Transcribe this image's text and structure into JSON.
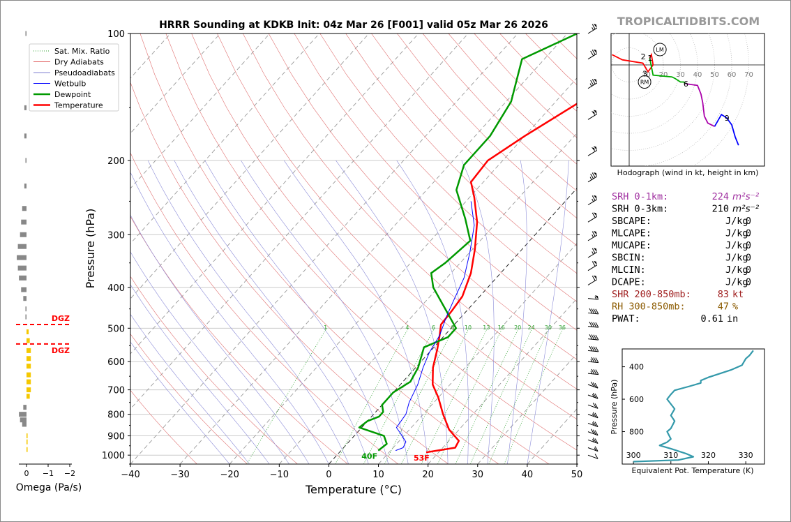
{
  "chart_data": {
    "type": "line",
    "title": "HRRR Sounding at KDKB Init: 04z Mar 26 [F001] valid 05z Mar 26 2026",
    "watermark": "TROPICALTIDBITS.COM",
    "xlabel": "Temperature (°C)",
    "ylabel": "Pressure (hPa)",
    "xlim": [
      -40,
      50
    ],
    "ylim": [
      1050,
      100
    ],
    "y_scale": "log",
    "x_ticks": [
      "−40",
      "−30",
      "−20",
      "−10",
      "0",
      "10",
      "20",
      "30",
      "40",
      "50"
    ],
    "y_ticks": [
      "100",
      "200",
      "300",
      "400",
      "500",
      "600",
      "700",
      "800",
      "900",
      "1000"
    ],
    "y_tick_values": [
      100,
      200,
      300,
      400,
      500,
      600,
      700,
      800,
      900,
      1000
    ],
    "legend_position": "top-left",
    "legend": [
      {
        "label": "Sat. Mix. Ratio",
        "color": "#2ca02c",
        "style": "dotted"
      },
      {
        "label": "Dry Adiabats",
        "color": "#e06060",
        "style": "solid"
      },
      {
        "label": "Pseudoadiabats",
        "color": "#7f7fd0",
        "style": "solid"
      },
      {
        "label": "Wetbulb",
        "color": "#0000ff",
        "style": "solid"
      },
      {
        "label": "Dewpoint",
        "color": "#009900",
        "style": "thick"
      },
      {
        "label": "Temperature",
        "color": "#ff0000",
        "style": "thick"
      }
    ],
    "mixing_ratio_labels": [
      "1",
      "4",
      "6",
      "8",
      "10",
      "13",
      "16",
      "20",
      "24",
      "30",
      "36"
    ],
    "mixing_ratio_values": [
      1,
      4,
      6,
      8,
      10,
      13,
      16,
      20,
      24,
      30,
      36
    ],
    "surface_labels": {
      "temperature": "53F",
      "dewpoint": "40F"
    },
    "series": [
      {
        "name": "Temperature",
        "color": "#ff0000",
        "points": [
          [
            17.5,
            985
          ],
          [
            22.5,
            960
          ],
          [
            22.0,
            925
          ],
          [
            18.0,
            870
          ],
          [
            14.0,
            800
          ],
          [
            10.0,
            730
          ],
          [
            6.5,
            680
          ],
          [
            3.5,
            620
          ],
          [
            1.0,
            560
          ],
          [
            -1.0,
            520
          ],
          [
            -2.7,
            490
          ],
          [
            -3.0,
            455
          ],
          [
            -3.5,
            420
          ],
          [
            -6.0,
            370
          ],
          [
            -9.5,
            325
          ],
          [
            -14.0,
            280
          ],
          [
            -19.0,
            245
          ],
          [
            -22.5,
            225
          ],
          [
            -23.0,
            200
          ],
          [
            -20.0,
            175
          ],
          [
            -15.0,
            145
          ],
          [
            -13.0,
            125
          ],
          [
            -11.0,
            110
          ],
          [
            -9.5,
            100
          ]
        ]
      },
      {
        "name": "Dewpoint",
        "color": "#009900",
        "points": [
          [
            7.5,
            975
          ],
          [
            8.0,
            940
          ],
          [
            6.0,
            900
          ],
          [
            -0.5,
            860
          ],
          [
            0.0,
            830
          ],
          [
            1.5,
            810
          ],
          [
            1.5,
            790
          ],
          [
            0.0,
            760
          ],
          [
            0.0,
            710
          ],
          [
            1.5,
            670
          ],
          [
            0.5,
            620
          ],
          [
            -1.0,
            580
          ],
          [
            -2.0,
            555
          ],
          [
            1.0,
            525
          ],
          [
            1.0,
            500
          ],
          [
            -3.5,
            460
          ],
          [
            -11.0,
            400
          ],
          [
            -14.0,
            370
          ],
          [
            -13.0,
            350
          ],
          [
            -12.0,
            310
          ],
          [
            -17.0,
            275
          ],
          [
            -24.0,
            235
          ],
          [
            -27.0,
            205
          ],
          [
            -27.0,
            175
          ],
          [
            -29.0,
            145
          ],
          [
            -34.5,
            115
          ],
          [
            -28.0,
            100
          ]
        ]
      },
      {
        "name": "Wetbulb",
        "color": "#0000ff",
        "points": [
          [
            11.0,
            975
          ],
          [
            12.0,
            960
          ],
          [
            11.5,
            930
          ],
          [
            9.0,
            890
          ],
          [
            7.0,
            860
          ],
          [
            6.5,
            800
          ],
          [
            5.0,
            750
          ],
          [
            3.5,
            680
          ],
          [
            1.5,
            620
          ],
          [
            0.0,
            570
          ],
          [
            -1.0,
            520
          ],
          [
            -3.0,
            470
          ],
          [
            -4.5,
            430
          ],
          [
            -6.5,
            380
          ],
          [
            -10.0,
            330
          ],
          [
            -14.0,
            285
          ],
          [
            -19.0,
            250
          ]
        ]
      }
    ],
    "wind_barbs": [
      {
        "p": 100,
        "kt": 65
      },
      {
        "p": 115,
        "kt": 70
      },
      {
        "p": 135,
        "kt": 75
      },
      {
        "p": 160,
        "kt": 100
      },
      {
        "p": 195,
        "kt": 100
      },
      {
        "p": 225,
        "kt": 75
      },
      {
        "p": 255,
        "kt": 65
      },
      {
        "p": 280,
        "kt": 60
      },
      {
        "p": 310,
        "kt": 65
      },
      {
        "p": 340,
        "kt": 65
      },
      {
        "p": 365,
        "kt": 60
      },
      {
        "p": 395,
        "kt": 60
      },
      {
        "p": 425,
        "kt": 55
      },
      {
        "p": 460,
        "kt": 40
      },
      {
        "p": 495,
        "kt": 40
      },
      {
        "p": 530,
        "kt": 40
      },
      {
        "p": 565,
        "kt": 40
      },
      {
        "p": 600,
        "kt": 35
      },
      {
        "p": 640,
        "kt": 35
      },
      {
        "p": 680,
        "kt": 30
      },
      {
        "p": 720,
        "kt": 25
      },
      {
        "p": 760,
        "kt": 20
      },
      {
        "p": 800,
        "kt": 25
      },
      {
        "p": 840,
        "kt": 25
      },
      {
        "p": 880,
        "kt": 30
      },
      {
        "p": 920,
        "kt": 25
      },
      {
        "p": 960,
        "kt": 15
      },
      {
        "p": 1000,
        "kt": 10
      }
    ]
  },
  "omega": {
    "xlabel": "Omega (Pa/s)",
    "ticks": [
      "0",
      "−1",
      "−2"
    ],
    "dgz_label": "DGZ",
    "dgz_pressures": [
      490,
      545
    ],
    "bars": [
      {
        "p": 100,
        "v": 0.05
      },
      {
        "p": 150,
        "v": 0.1
      },
      {
        "p": 175,
        "v": 0.1
      },
      {
        "p": 200,
        "v": 0.05
      },
      {
        "p": 230,
        "v": 0.1
      },
      {
        "p": 260,
        "v": 0.2
      },
      {
        "p": 280,
        "v": 0.25
      },
      {
        "p": 300,
        "v": 0.3
      },
      {
        "p": 320,
        "v": 0.4
      },
      {
        "p": 340,
        "v": 0.45
      },
      {
        "p": 360,
        "v": 0.4
      },
      {
        "p": 380,
        "v": 0.35
      },
      {
        "p": 405,
        "v": 0.25
      },
      {
        "p": 425,
        "v": 0.15
      },
      {
        "p": 450,
        "v": 0.05
      },
      {
        "p": 470,
        "v": 0.05
      },
      {
        "p": 510,
        "v": -0.1
      },
      {
        "p": 535,
        "v": -0.15
      },
      {
        "p": 565,
        "v": -0.2
      },
      {
        "p": 590,
        "v": -0.2
      },
      {
        "p": 615,
        "v": -0.2
      },
      {
        "p": 645,
        "v": -0.2
      },
      {
        "p": 670,
        "v": -0.2
      },
      {
        "p": 700,
        "v": -0.2
      },
      {
        "p": 725,
        "v": -0.15
      },
      {
        "p": 770,
        "v": 0.15
      },
      {
        "p": 800,
        "v": 0.35
      },
      {
        "p": 825,
        "v": 0.3
      },
      {
        "p": 845,
        "v": 0.2
      },
      {
        "p": 900,
        "v": -0.05
      },
      {
        "p": 930,
        "v": -0.05
      },
      {
        "p": 970,
        "v": -0.05
      }
    ]
  },
  "hodograph": {
    "caption": "Hodograph (wind in kt, height in km)",
    "ring_labels": [
      "10",
      "20",
      "30",
      "40",
      "50",
      "60",
      "70"
    ],
    "markers": {
      "lm": "LM",
      "rm": "RM"
    },
    "height_labels": [
      "1",
      "2",
      "3",
      "6",
      "9"
    ],
    "segments": [
      {
        "color": "#ff0000",
        "points": [
          [
            -10,
            -6
          ],
          [
            -4,
            -3
          ],
          [
            8,
            -1
          ],
          [
            11,
            4
          ],
          [
            14,
            0
          ],
          [
            13,
            -6
          ],
          [
            12,
            -4
          ]
        ]
      },
      {
        "color": "#00aa00",
        "points": [
          [
            12,
            -4
          ],
          [
            14,
            6
          ],
          [
            25,
            7
          ],
          [
            27,
            8
          ],
          [
            30,
            10
          ],
          [
            32,
            10
          ],
          [
            33,
            11
          ]
        ]
      },
      {
        "color": "#aa00aa",
        "points": [
          [
            33,
            11
          ],
          [
            40,
            12
          ],
          [
            42,
            17
          ],
          [
            43,
            22
          ],
          [
            44,
            30
          ],
          [
            46,
            34
          ],
          [
            50,
            36
          ]
        ]
      },
      {
        "color": "#0000ff",
        "points": [
          [
            50,
            36
          ],
          [
            54,
            29
          ],
          [
            57,
            31
          ],
          [
            60,
            35
          ],
          [
            62,
            42
          ],
          [
            64,
            47
          ]
        ]
      }
    ],
    "storm_motion": {
      "lm": [
        18,
        -9
      ],
      "rm": [
        9,
        10
      ]
    },
    "height_points": {
      "1": [
        12,
        -4
      ],
      "2": [
        8,
        -5
      ],
      "3": [
        9,
        5
      ],
      "6": [
        33,
        11
      ],
      "9": [
        57,
        31
      ]
    }
  },
  "indices": [
    {
      "label": "SRH 0-1km:",
      "value": "224",
      "unit": "m²s⁻²",
      "color": "#a030a0"
    },
    {
      "label": "SRH 0-3km:",
      "value": "210",
      "unit": "m²s⁻²",
      "color": "#000000"
    },
    {
      "label": "SBCAPE:",
      "value": "0",
      "unit": "J/kg",
      "color": "#000000"
    },
    {
      "label": "MLCAPE:",
      "value": "0",
      "unit": "J/kg",
      "color": "#000000"
    },
    {
      "label": "MUCAPE:",
      "value": "0",
      "unit": "J/kg",
      "color": "#000000"
    },
    {
      "label": "SBCIN:",
      "value": "0",
      "unit": "J/kg",
      "color": "#000000"
    },
    {
      "label": "MLCIN:",
      "value": "0",
      "unit": "J/kg",
      "color": "#000000"
    },
    {
      "label": "DCAPE:",
      "value": "0",
      "unit": "J/kg",
      "color": "#000000"
    },
    {
      "label": "SHR 200-850mb:",
      "value": "83",
      "unit": "kt",
      "color": "#a02020"
    },
    {
      "label": "RH 300-850mb:",
      "value": "47",
      "unit": "%",
      "color": "#8b5a00"
    },
    {
      "label": "PWAT:",
      "value": "0.61",
      "unit": "in",
      "color": "#000000"
    }
  ],
  "theta_e": {
    "xlabel": "Equivalent Pot. Temperature (K)",
    "ylabel": "Pressure (hPa)",
    "xlim": [
      297,
      335
    ],
    "ylim": [
      1000,
      290
    ],
    "x_ticks": [
      "300",
      "310",
      "320",
      "330"
    ],
    "x_tick_values": [
      300,
      310,
      320,
      330
    ],
    "y_ticks": [
      "400",
      "600",
      "800"
    ],
    "y_tick_values": [
      400,
      600,
      800
    ],
    "color": "#3399aa",
    "points": [
      [
        300,
        985
      ],
      [
        312,
        975
      ],
      [
        316,
        955
      ],
      [
        314,
        935
      ],
      [
        310,
        905
      ],
      [
        307,
        885
      ],
      [
        309,
        865
      ],
      [
        310,
        845
      ],
      [
        309,
        800
      ],
      [
        310,
        780
      ],
      [
        311,
        735
      ],
      [
        310,
        700
      ],
      [
        311,
        660
      ],
      [
        310,
        630
      ],
      [
        309,
        600
      ],
      [
        310,
        570
      ],
      [
        311,
        545
      ],
      [
        315,
        520
      ],
      [
        318,
        500
      ],
      [
        318,
        485
      ],
      [
        320,
        465
      ],
      [
        326,
        420
      ],
      [
        329,
        390
      ],
      [
        330,
        350
      ],
      [
        331,
        330
      ],
      [
        332,
        300
      ]
    ]
  }
}
